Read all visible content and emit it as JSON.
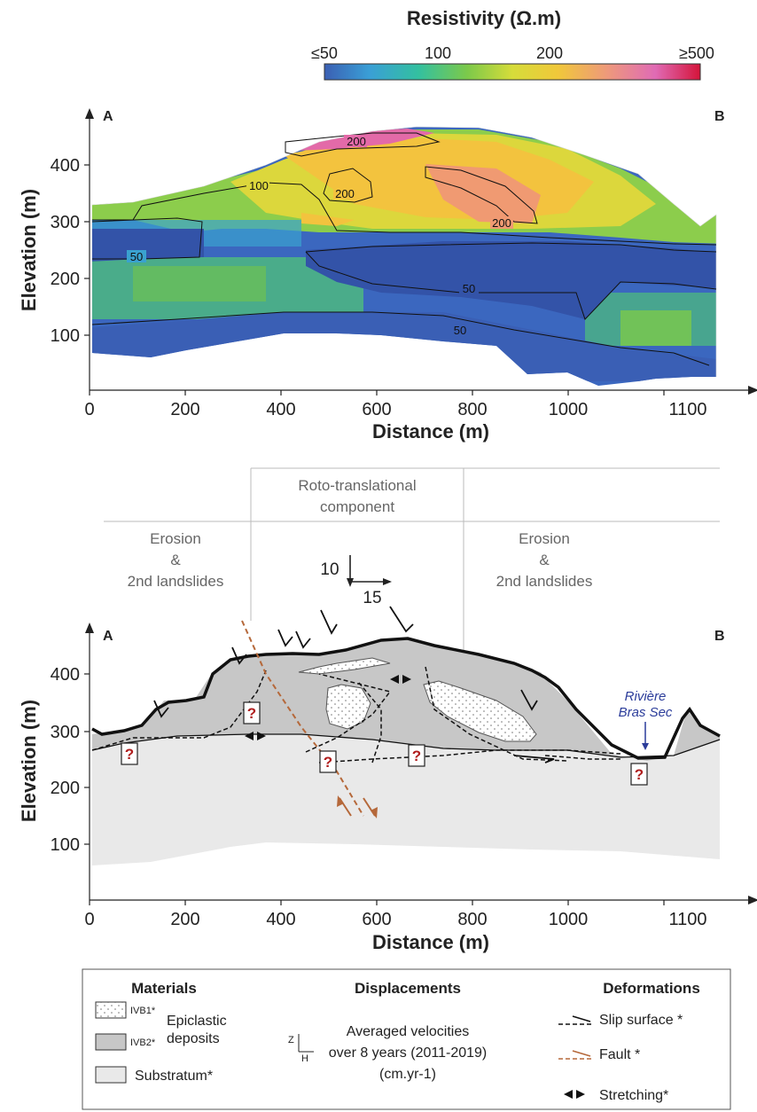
{
  "colorbar": {
    "title": "Resistivity (Ω.m)",
    "labels": [
      "≤50",
      "100",
      "200",
      "≥500"
    ],
    "colors": [
      "#3b5fb3",
      "#3a9fd6",
      "#33c0a0",
      "#7cc94a",
      "#d6dc3a",
      "#f0c83a",
      "#ee9a7a",
      "#e06bb5",
      "#d4143a"
    ]
  },
  "section_top": {
    "corner_left": "A",
    "corner_right": "B",
    "contour_labels": [
      "200",
      "100",
      "200",
      "200",
      "50",
      "50",
      "50"
    ]
  },
  "section_bottom": {
    "corner_left": "A",
    "corner_right": "B",
    "zones": {
      "left_line1": "Erosion",
      "left_line2": "&",
      "left_line3": "2nd landslides",
      "center_line1": "Roto-translational",
      "center_line2": "component",
      "right_line1": "Erosion",
      "right_line2": "&",
      "right_line3": "2nd landslides"
    },
    "velocity_z": "10",
    "velocity_h": "15",
    "river_line1": "Rivière",
    "river_line2": "Bras Sec",
    "question_mark": "?"
  },
  "axes": {
    "ylabel": "Elevation (m)",
    "xlabel": "Distance (m)",
    "yticks": [
      "400",
      "300",
      "200",
      "100"
    ],
    "xticks": [
      "0",
      "200",
      "400",
      "600",
      "800",
      "1000",
      "1100"
    ]
  },
  "legend": {
    "materials_title": "Materials",
    "ivb1": "IVB1*",
    "ivb2": "IVB2*",
    "epiclastic_line1": "Epiclastic",
    "epiclastic_line2": "deposits",
    "substratum": "Substratum*",
    "displacements_title": "Displacements",
    "z_label": "Z",
    "h_label": "H",
    "disp_line1": "Averaged velocities",
    "disp_line2": "over 8 years (2011-2019)",
    "disp_line3": "(cm.yr-1)",
    "deformations_title": "Deformations",
    "slip": "Slip surface *",
    "fault": "Fault *",
    "stretching": "Stretching*"
  }
}
